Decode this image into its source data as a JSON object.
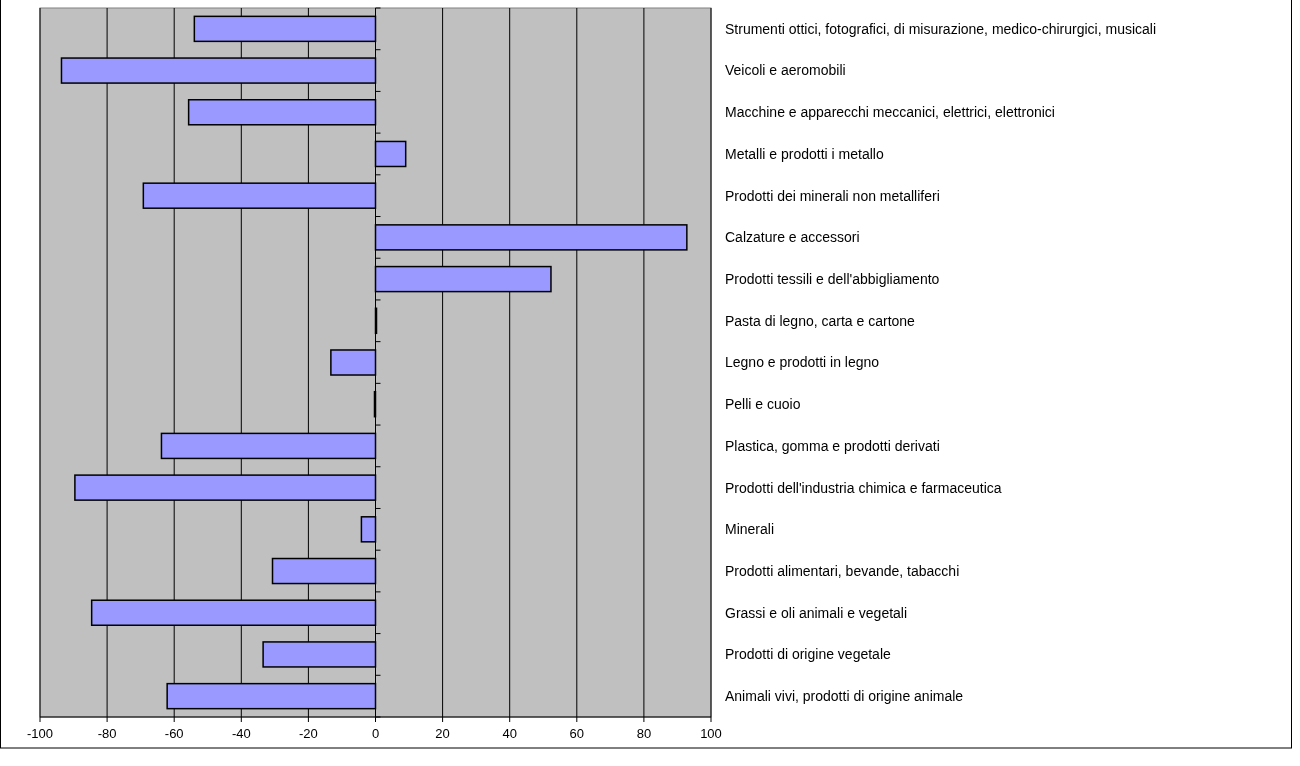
{
  "chart_data": {
    "type": "bar",
    "orientation": "horizontal",
    "categories": [
      "Strumenti ottici, fotografici, di misurazione, medico-chirurgici, musicali",
      "Veicoli e aeromobili",
      "Macchine e apparecchi meccanici, elettrici, elettronici",
      "Metalli e prodotti i metallo",
      "Prodotti dei minerali non metalliferi",
      "Calzature e accessori",
      "Prodotti tessili e dell'abbigliamento",
      "Pasta di legno, carta e cartone",
      "Legno e prodotti in legno",
      "Pelli e cuoio",
      "Plastica, gomma e prodotti derivati",
      "Prodotti dell'industria chimica e farmaceutica",
      "Minerali",
      "Prodotti alimentari, bevande, tabacchi",
      "Grassi e oli animali e vegetali",
      "Prodotti di origine vegetale",
      "Animali vivi, prodotti di origine animale"
    ],
    "values": [
      -54,
      -93.6,
      -55.7,
      9,
      -69.2,
      92.8,
      52.3,
      0.3,
      -13.3,
      -0.3,
      -63.8,
      -89.6,
      -4.2,
      -30.7,
      -84.6,
      -33.5,
      -62.1
    ],
    "color": "#9999ff",
    "xlim": [
      -100,
      100
    ],
    "xticks": [
      -100,
      -80,
      -60,
      -40,
      -20,
      0,
      20,
      40,
      60,
      80,
      100
    ],
    "grid": "x"
  }
}
